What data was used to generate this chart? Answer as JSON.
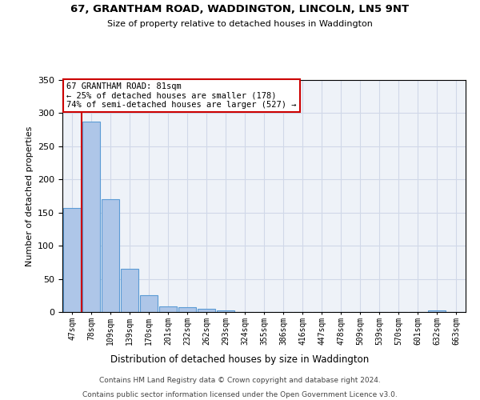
{
  "title1": "67, GRANTHAM ROAD, WADDINGTON, LINCOLN, LN5 9NT",
  "title2": "Size of property relative to detached houses in Waddington",
  "xlabel": "Distribution of detached houses by size in Waddington",
  "ylabel": "Number of detached properties",
  "categories": [
    "47sqm",
    "78sqm",
    "109sqm",
    "139sqm",
    "170sqm",
    "201sqm",
    "232sqm",
    "262sqm",
    "293sqm",
    "324sqm",
    "355sqm",
    "386sqm",
    "416sqm",
    "447sqm",
    "478sqm",
    "509sqm",
    "539sqm",
    "570sqm",
    "601sqm",
    "632sqm",
    "663sqm"
  ],
  "values": [
    157,
    287,
    170,
    65,
    25,
    9,
    7,
    5,
    3,
    0,
    0,
    0,
    0,
    0,
    0,
    0,
    0,
    0,
    0,
    3,
    0
  ],
  "bar_color": "#aec6e8",
  "bar_edge_color": "#5b9bd5",
  "annotation_text": "67 GRANTHAM ROAD: 81sqm\n← 25% of detached houses are smaller (178)\n74% of semi-detached houses are larger (527) →",
  "annotation_box_color": "#ffffff",
  "annotation_box_edge": "#cc0000",
  "vline_color": "#cc0000",
  "grid_color": "#d0d8e8",
  "background_color": "#eef2f8",
  "ylim": [
    0,
    350
  ],
  "yticks": [
    0,
    50,
    100,
    150,
    200,
    250,
    300,
    350
  ],
  "footer1": "Contains HM Land Registry data © Crown copyright and database right 2024.",
  "footer2": "Contains public sector information licensed under the Open Government Licence v3.0."
}
